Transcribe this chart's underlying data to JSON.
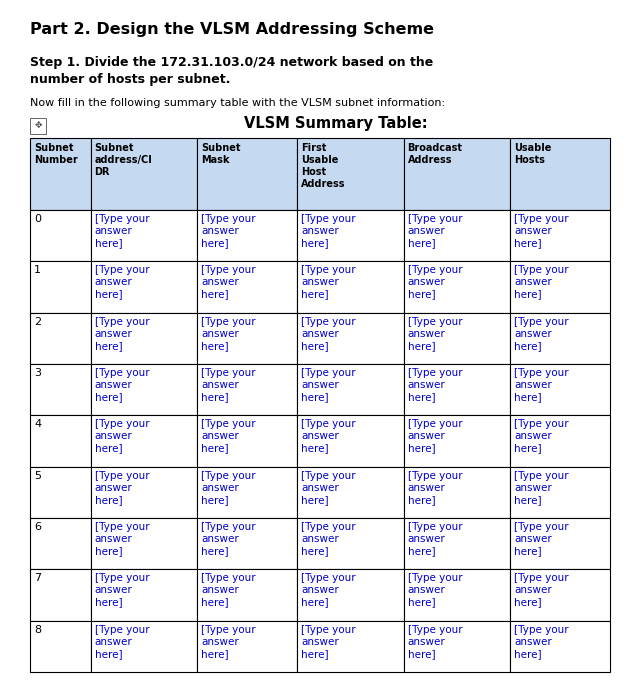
{
  "title1": "Part 2. Design the VLSM Addressing Scheme",
  "title2": "Step 1. Divide the 172.31.103.0/24 network based on the\nnumber of hosts per subnet.",
  "subtitle": "Now fill in the following summary table with the VLSM subnet information:",
  "table_title": "VLSM Summary Table:",
  "col_headers": [
    "Subnet\nNumber",
    "Subnet\naddress/CI\nDR",
    "Subnet\nMask",
    "First\nUsable\nHost\nAddress",
    "Broadcast\nAddress",
    "Usable\nHosts"
  ],
  "rows": [
    "0",
    "1",
    "2",
    "3",
    "4",
    "5",
    "6",
    "7",
    "8"
  ],
  "cell_text": "[Type your\nanswer\nhere]",
  "header_bg": "#c5d9f1",
  "cell_bg": "#ffffff",
  "border_color": "#000000",
  "text_color_header": "#000000",
  "text_color_cell": "#0000cc",
  "text_color_row_num": "#000000",
  "bg_color": "#ffffff",
  "col_widths_rel": [
    0.88,
    1.55,
    1.45,
    1.55,
    1.55,
    1.45
  ],
  "fig_width": 6.34,
  "fig_height": 6.89,
  "dpi": 100
}
